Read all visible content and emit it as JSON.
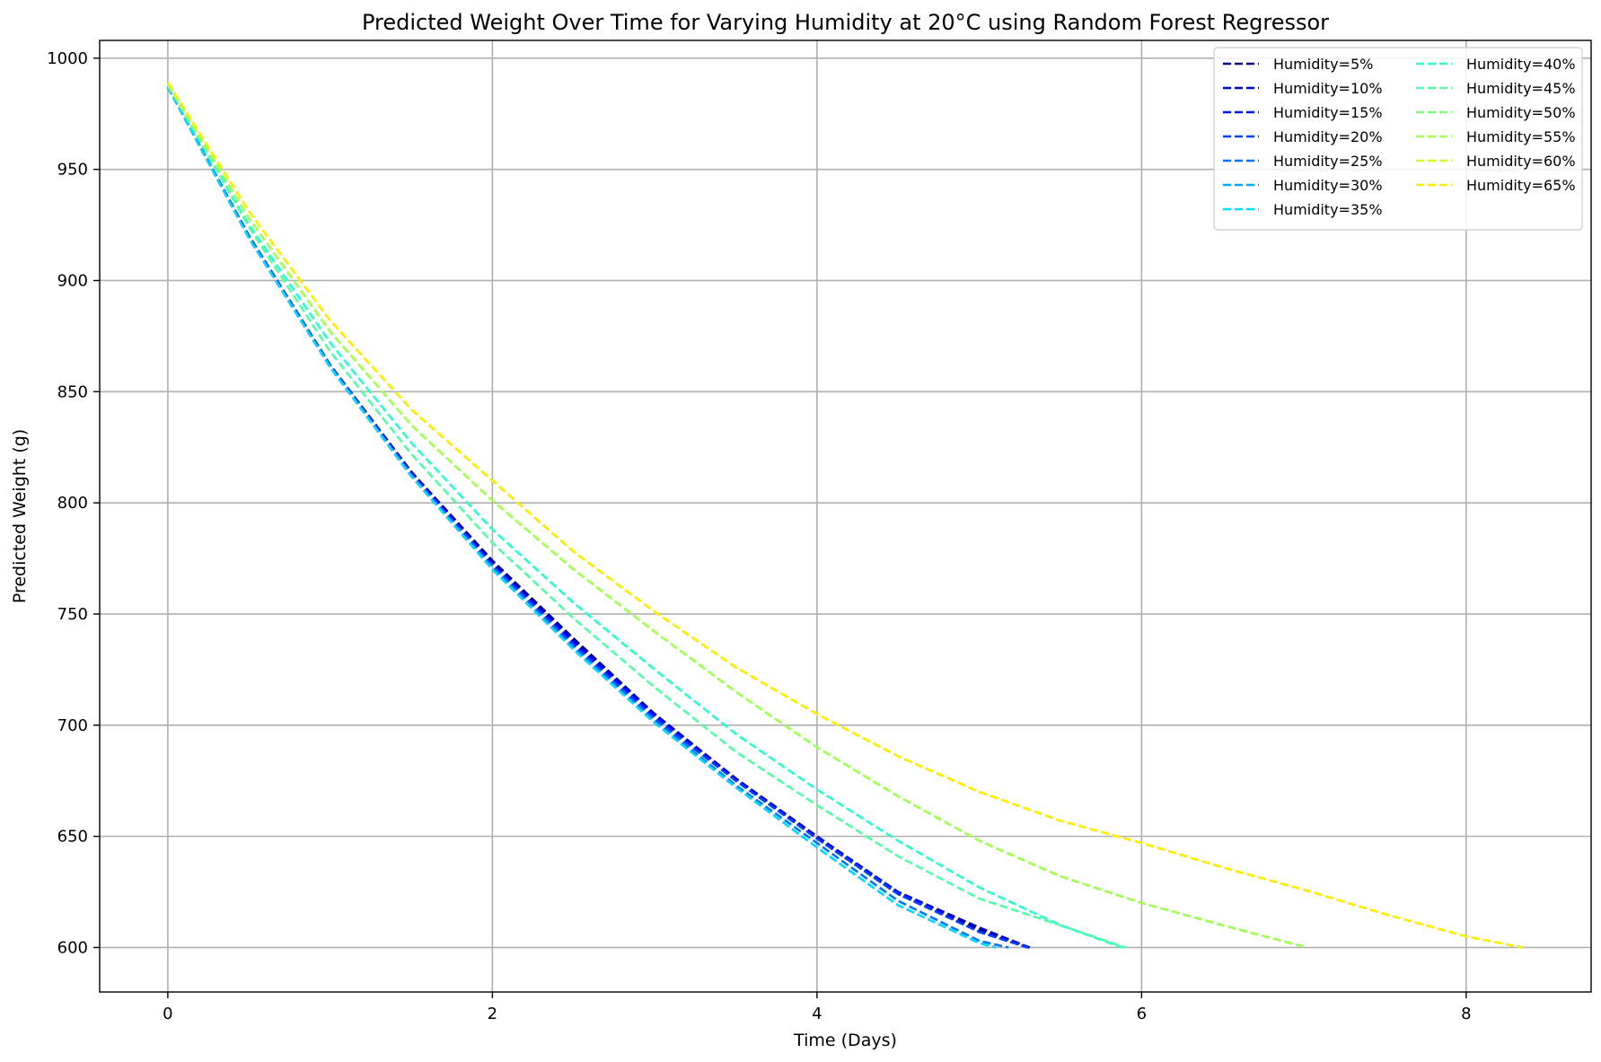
{
  "chart_data": {
    "type": "line",
    "title": "Predicted Weight Over Time for Varying Humidity at 20°C using Random Forest Regressor",
    "xlabel": "Time (Days)",
    "ylabel": "Predicted Weight (g)",
    "xlim": [
      -0.42,
      8.77
    ],
    "ylim": [
      580,
      1008
    ],
    "xticks": [
      0,
      2,
      4,
      6,
      8
    ],
    "yticks": [
      600,
      650,
      700,
      750,
      800,
      850,
      900,
      950,
      1000
    ],
    "xtick_labels": [
      "0",
      "2",
      "4",
      "6",
      "8"
    ],
    "ytick_labels": [
      "600",
      "650",
      "700",
      "750",
      "800",
      "850",
      "900",
      "950",
      "1000"
    ],
    "grid": true,
    "line_style": "dashed",
    "legend": {
      "placement": "top-right",
      "columns": 2
    },
    "series": [
      {
        "name": "Humidity=5%",
        "color": "#00007f",
        "x": [
          0,
          0.5,
          1,
          1.5,
          2,
          2.5,
          3,
          3.5,
          4,
          4.5,
          5,
          5.31
        ],
        "y": [
          987,
          920,
          862,
          814,
          774,
          739,
          705,
          676,
          649,
          624,
          608,
          600
        ]
      },
      {
        "name": "Humidity=10%",
        "color": "#0000c8",
        "x": [
          0,
          0.5,
          1,
          1.5,
          2,
          2.5,
          3,
          3.5,
          4,
          4.5,
          5,
          5.31
        ],
        "y": [
          987,
          920,
          862,
          814,
          773,
          738,
          705,
          676,
          650,
          625,
          609,
          600
        ]
      },
      {
        "name": "Humidity=15%",
        "color": "#0010ff",
        "x": [
          0,
          0.5,
          1,
          1.5,
          2,
          2.5,
          3,
          3.5,
          4,
          4.5,
          5,
          5.3
        ],
        "y": [
          987,
          920,
          862,
          813,
          772,
          737,
          704,
          675,
          649,
          625,
          607,
          600
        ]
      },
      {
        "name": "Humidity=20%",
        "color": "#0040ff",
        "x": [
          0,
          0.5,
          1,
          1.5,
          2,
          2.5,
          3,
          3.5,
          4,
          4.5,
          5,
          5.3
        ],
        "y": [
          987,
          920,
          862,
          813,
          772,
          736,
          703,
          675,
          649,
          624,
          607,
          600
        ]
      },
      {
        "name": "Humidity=25%",
        "color": "#0074ff",
        "x": [
          0,
          0.5,
          1,
          1.5,
          2,
          2.5,
          3,
          3.5,
          4,
          4.5,
          5,
          5.18
        ],
        "y": [
          987,
          919,
          861,
          812,
          771,
          735,
          702,
          673,
          647,
          621,
          603,
          600
        ]
      },
      {
        "name": "Humidity=30%",
        "color": "#00a8ff",
        "x": [
          0,
          0.5,
          1,
          1.5,
          2,
          2.5,
          3,
          3.5,
          4,
          4.5,
          5,
          5.1
        ],
        "y": [
          987,
          919,
          861,
          812,
          770,
          734,
          701,
          672,
          645,
          619,
          602,
          600
        ]
      },
      {
        "name": "Humidity=35%",
        "color": "#00dcfe",
        "x": [
          0,
          0.5,
          1,
          1.5,
          2,
          2.5,
          3,
          3.5,
          4,
          4.5,
          5,
          5.1
        ],
        "y": [
          987,
          919,
          861,
          812,
          770,
          734,
          701,
          672,
          645,
          619,
          602,
          600
        ]
      },
      {
        "name": "Humidity=40%",
        "color": "#29ffce",
        "x": [
          0,
          0.5,
          1,
          1.5,
          2,
          2.5,
          3,
          3.5,
          4,
          4.5,
          5,
          5.5,
          5.88
        ],
        "y": [
          988,
          925,
          872,
          827,
          788,
          755,
          725,
          696,
          671,
          648,
          627,
          610,
          600
        ]
      },
      {
        "name": "Humidity=45%",
        "color": "#53ffa4",
        "x": [
          0,
          0.5,
          1,
          1.5,
          2,
          2.5,
          3,
          3.5,
          4,
          4.5,
          5,
          5.5,
          5.9
        ],
        "y": [
          988,
          924,
          868,
          822,
          782,
          748,
          717,
          688,
          664,
          641,
          622,
          610,
          600
        ]
      },
      {
        "name": "Humidity=50%",
        "color": "#7dff7a",
        "x": [
          0,
          0.5,
          1,
          1.5,
          2,
          2.5,
          3,
          3.5,
          4,
          4.5,
          5,
          5.5,
          6,
          6.5,
          7.02
        ],
        "y": [
          988,
          928,
          877,
          835,
          801,
          770,
          742,
          715,
          690,
          668,
          648,
          632,
          620,
          610,
          600
        ]
      },
      {
        "name": "Humidity=55%",
        "color": "#a4ff53",
        "x": [
          0,
          0.5,
          1,
          1.5,
          2,
          2.5,
          3,
          3.5,
          4,
          4.5,
          5,
          5.5,
          6,
          6.5,
          7.02
        ],
        "y": [
          988,
          928,
          877,
          835,
          801,
          770,
          742,
          715,
          690,
          668,
          648,
          632,
          620,
          610,
          600
        ]
      },
      {
        "name": "Humidity=60%",
        "color": "#ceff29",
        "x": [
          0,
          0.5,
          1,
          1.5,
          2,
          2.5,
          3,
          3.5,
          4,
          4.5,
          5,
          5.5,
          6,
          6.5,
          7,
          7.5,
          8,
          8.35
        ],
        "y": [
          989,
          931,
          882,
          842,
          810,
          778,
          751,
          726,
          705,
          686,
          670,
          657,
          647,
          636,
          626,
          615,
          605,
          600
        ]
      },
      {
        "name": "Humidity=65%",
        "color": "#feed00",
        "x": [
          0,
          0.5,
          1,
          1.5,
          2,
          2.5,
          3,
          3.5,
          4,
          4.5,
          5,
          5.5,
          6,
          6.5,
          7,
          7.5,
          8,
          8.35
        ],
        "y": [
          989,
          931,
          882,
          842,
          810,
          778,
          751,
          726,
          705,
          686,
          670,
          657,
          647,
          636,
          626,
          615,
          605,
          600
        ]
      }
    ]
  }
}
